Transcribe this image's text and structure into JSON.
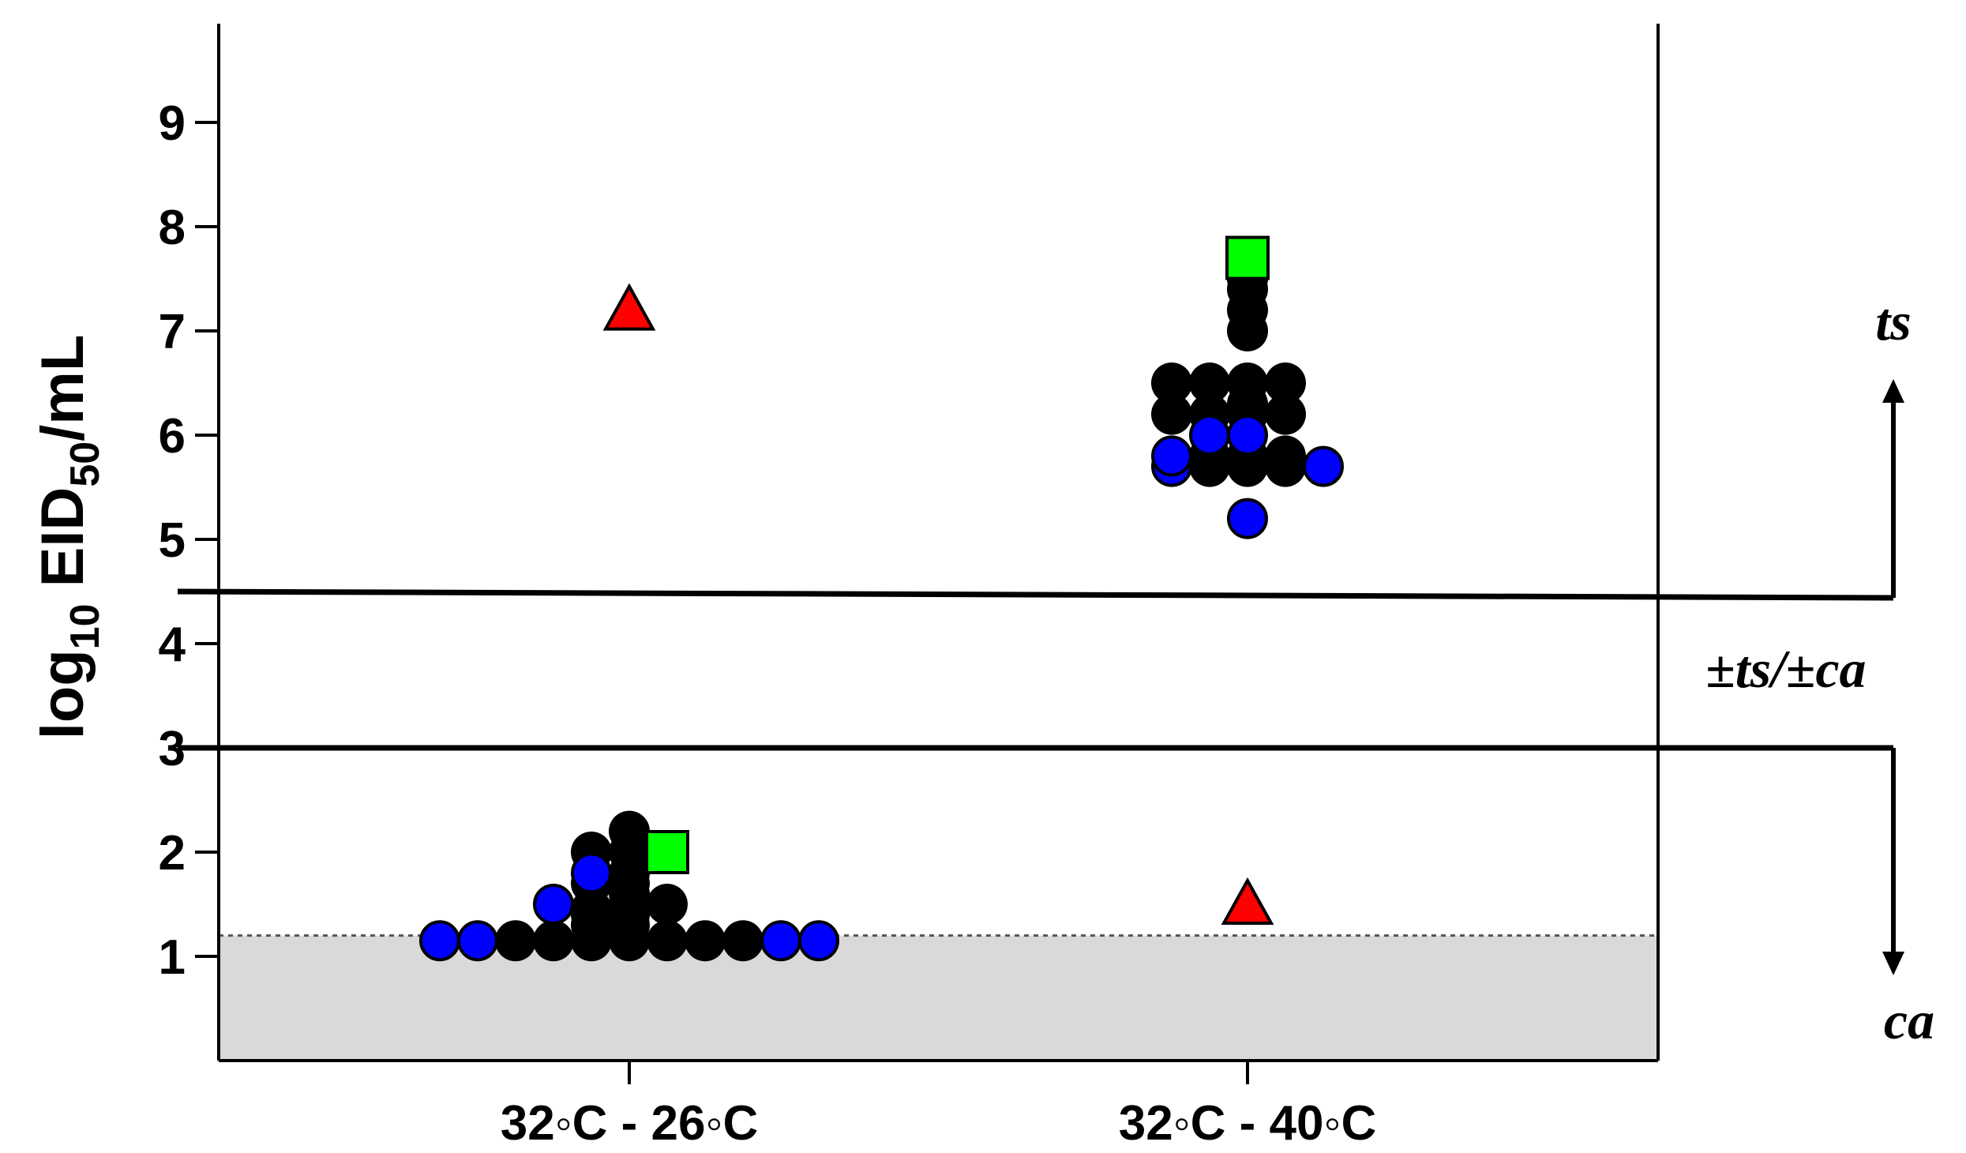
{
  "chart_data": {
    "type": "scatter",
    "ylabel_main": "log",
    "ylabel_sub": "10",
    "ylabel_mid": " EID",
    "ylabel_sub2": "50",
    "ylabel_end": "/mL",
    "categories": [
      "32◦C - 26◦C",
      "32◦C - 40◦C"
    ],
    "yticks": [
      "1",
      "2",
      "3",
      "4",
      "5",
      "6",
      "7",
      "8",
      "9"
    ],
    "ylim": [
      0,
      10
    ],
    "thresholds": [
      4.5,
      3.0
    ],
    "detection_limit": 1.2,
    "zone_labels": {
      "ts": "ts",
      "mid": "±ts/±ca",
      "ca": "ca"
    },
    "colors": {
      "black": "#000000",
      "blue": "#0000ff",
      "green": "#00ff00",
      "red": "#ff0000",
      "shade": "#d9d9d9"
    },
    "series": [
      {
        "marker": "circle-black",
        "points": [
          [
            0,
            2.2
          ],
          [
            0,
            2.0
          ],
          [
            0,
            1.8
          ],
          [
            0,
            2.0
          ],
          [
            0,
            1.7
          ],
          [
            0,
            1.5
          ],
          [
            0,
            1.4
          ],
          [
            0,
            1.3
          ],
          [
            0,
            1.15
          ],
          [
            0,
            1.15
          ],
          [
            0,
            1.15
          ],
          [
            0,
            1.15
          ],
          [
            0,
            1.15
          ],
          [
            0,
            1.15
          ],
          [
            0,
            1.15
          ],
          [
            0,
            1.3
          ],
          [
            0,
            1.4
          ],
          [
            0,
            1.45
          ],
          [
            0,
            1.5
          ],
          [
            0,
            1.6
          ],
          [
            0,
            1.7
          ],
          [
            1,
            7.5
          ],
          [
            1,
            7.2
          ],
          [
            1,
            7.0
          ],
          [
            1,
            7.4
          ],
          [
            1,
            6.5
          ],
          [
            1,
            6.5
          ],
          [
            1,
            6.3
          ],
          [
            1,
            6.2
          ],
          [
            1,
            6.2
          ],
          [
            1,
            6.2
          ],
          [
            1,
            6.2
          ],
          [
            1,
            6.5
          ],
          [
            1,
            6.5
          ],
          [
            1,
            5.8
          ],
          [
            1,
            5.7
          ],
          [
            1,
            5.7
          ],
          [
            1,
            5.8
          ],
          [
            1,
            5.7
          ],
          [
            1,
            5.8
          ]
        ]
      },
      {
        "marker": "circle-blue",
        "points": [
          [
            0,
            1.5
          ],
          [
            0,
            1.8
          ],
          [
            0,
            1.15
          ],
          [
            0,
            1.15
          ],
          [
            0,
            1.15
          ],
          [
            0,
            1.15
          ],
          [
            1,
            6.0
          ],
          [
            1,
            6.0
          ],
          [
            1,
            5.7
          ],
          [
            1,
            5.7
          ],
          [
            1,
            5.8
          ],
          [
            1,
            5.2
          ]
        ]
      },
      {
        "marker": "square-green",
        "points": [
          [
            0,
            2.0
          ],
          [
            1,
            7.7
          ]
        ]
      },
      {
        "marker": "triangle-red",
        "points": [
          [
            0,
            7.2
          ],
          [
            1,
            1.5
          ]
        ]
      }
    ]
  }
}
